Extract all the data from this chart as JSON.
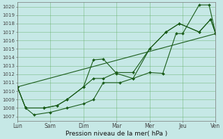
{
  "xlabel": "Pression niveau de la mer( hPa )",
  "background_color": "#c6e8e6",
  "grid_color": "#5aaa5a",
  "line_color": "#1a5c1a",
  "xlim": [
    0,
    6
  ],
  "ylim": [
    1006.5,
    1020.5
  ],
  "yticks": [
    1007,
    1008,
    1009,
    1010,
    1011,
    1012,
    1013,
    1014,
    1015,
    1016,
    1017,
    1018,
    1019,
    1020
  ],
  "xtick_labels": [
    "Lun",
    "Sam",
    "Dim",
    "Mar",
    "Mer",
    "Jeu",
    "Ven"
  ],
  "xtick_positions": [
    0,
    1,
    2,
    3,
    4,
    5,
    6
  ],
  "line1_x": [
    0.0,
    0.25,
    0.5,
    1.0,
    1.5,
    2.0,
    2.3,
    2.6,
    3.1,
    3.5,
    4.0,
    4.4,
    4.8,
    5.0,
    5.5,
    5.8,
    6.0
  ],
  "line1_y": [
    1010.5,
    1008.0,
    1007.2,
    1007.5,
    1008.0,
    1008.5,
    1009.0,
    1011.0,
    1011.0,
    1011.5,
    1012.2,
    1012.1,
    1016.8,
    1016.8,
    1020.2,
    1020.2,
    1016.8
  ],
  "line2_x": [
    0.0,
    0.25,
    0.8,
    1.2,
    1.5,
    2.0,
    2.3,
    2.6,
    3.0,
    3.5,
    4.0,
    4.5,
    4.9,
    5.5,
    5.85,
    6.0
  ],
  "line2_y": [
    1010.5,
    1008.0,
    1008.0,
    1008.3,
    1009.0,
    1010.5,
    1013.7,
    1013.8,
    1012.1,
    1011.5,
    1015.0,
    1017.0,
    1018.0,
    1017.0,
    1018.5,
    1016.8
  ],
  "line3_x": [
    0.0,
    0.25,
    0.8,
    1.2,
    1.5,
    2.0,
    2.3,
    2.6,
    3.0,
    3.5,
    4.0,
    4.5,
    4.9,
    5.5,
    5.85,
    6.0
  ],
  "line3_y": [
    1010.5,
    1008.0,
    1008.0,
    1008.3,
    1009.0,
    1010.5,
    1011.5,
    1011.5,
    1012.2,
    1012.2,
    1015.0,
    1017.0,
    1018.0,
    1017.0,
    1018.5,
    1016.8
  ],
  "line4_x": [
    0.0,
    6.0
  ],
  "line4_y": [
    1010.5,
    1016.8
  ]
}
